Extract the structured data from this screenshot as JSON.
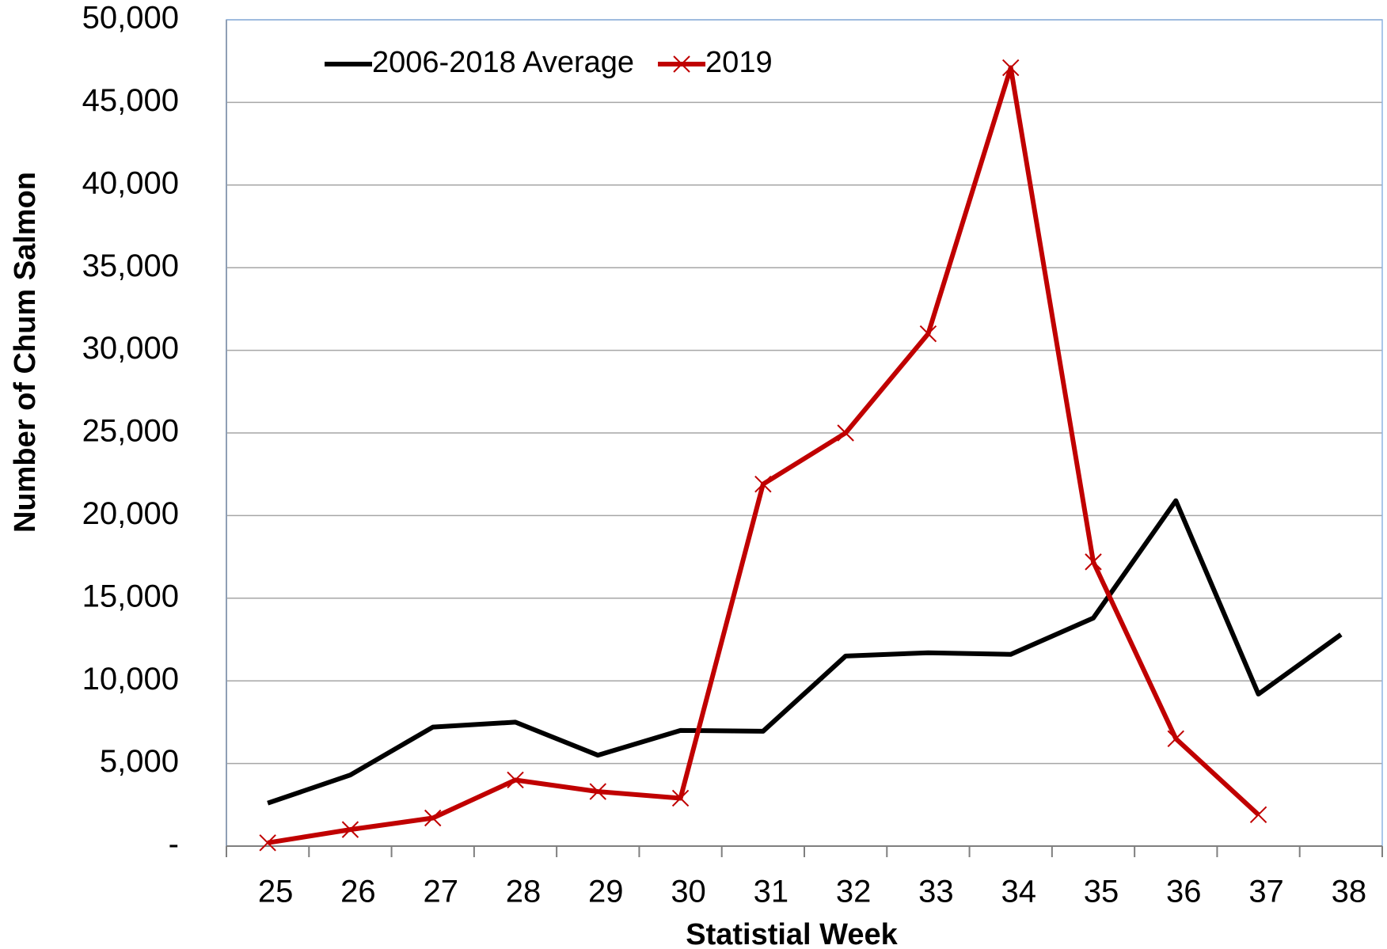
{
  "chart_data": {
    "type": "line",
    "x_label": "Statistial Week",
    "y_label": "Number of Chum Salmon",
    "categories": [
      "25",
      "26",
      "27",
      "28",
      "29",
      "30",
      "31",
      "32",
      "33",
      "34",
      "35",
      "36",
      "37",
      "38"
    ],
    "series": [
      {
        "name": "2006-2018 Average",
        "color": "#000000",
        "marker": "none",
        "values": [
          2600,
          4300,
          7200,
          7500,
          5500,
          7000,
          6950,
          11500,
          11700,
          11600,
          13800,
          20900,
          9200,
          12800
        ]
      },
      {
        "name": "2019",
        "color": "#c00000",
        "marker": "x",
        "values": [
          200,
          1000,
          1700,
          4000,
          3300,
          2900,
          21900,
          25000,
          31000,
          47100,
          17200,
          6500,
          1900,
          null
        ]
      }
    ],
    "ylim": [
      0,
      50000
    ],
    "yticks": [
      {
        "value": 0,
        "label": "-"
      },
      {
        "value": 5000,
        "label": "5,000"
      },
      {
        "value": 10000,
        "label": "10,000"
      },
      {
        "value": 15000,
        "label": "15,000"
      },
      {
        "value": 20000,
        "label": "20,000"
      },
      {
        "value": 25000,
        "label": "25,000"
      },
      {
        "value": 30000,
        "label": "30,000"
      },
      {
        "value": 35000,
        "label": "35,000"
      },
      {
        "value": 40000,
        "label": "40,000"
      },
      {
        "value": 45000,
        "label": "45,000"
      },
      {
        "value": 50000,
        "label": "50,000"
      }
    ],
    "grid": true,
    "legend": "upper left"
  }
}
